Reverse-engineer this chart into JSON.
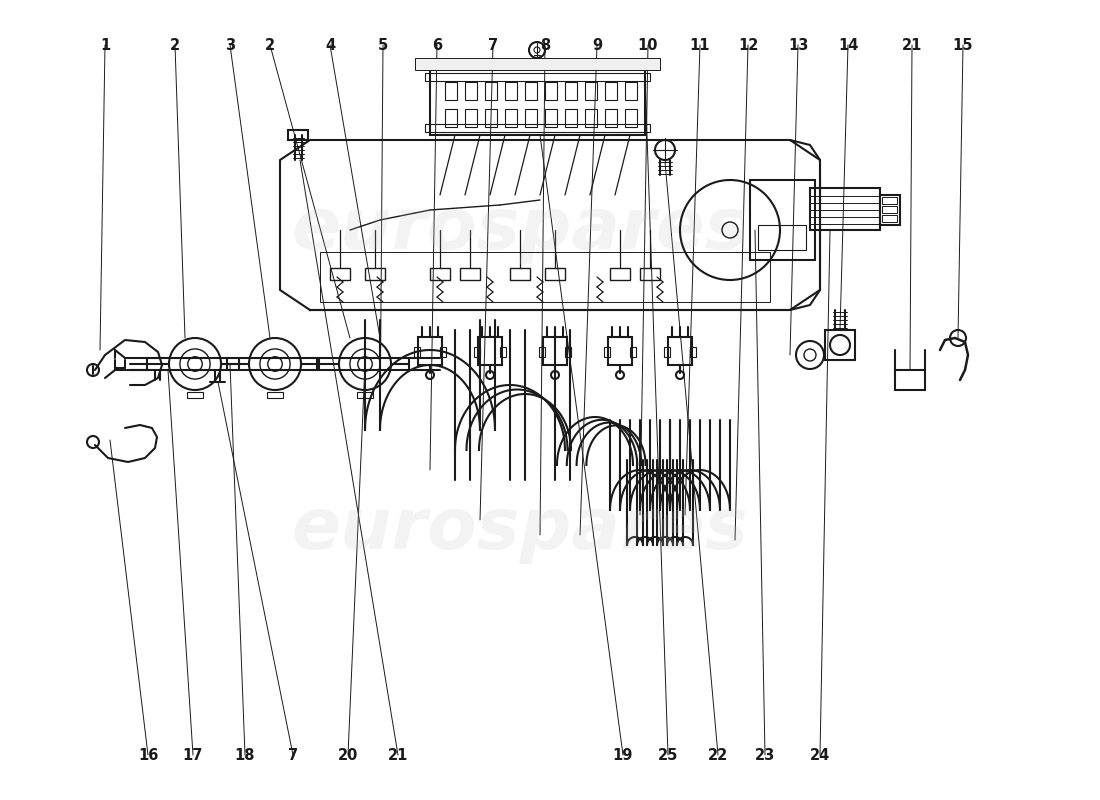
{
  "background_color": "#ffffff",
  "line_color": "#1a1a1a",
  "watermark_text": "eurospares",
  "top_labels": [
    [
      105,
      755,
      "1"
    ],
    [
      175,
      755,
      "2"
    ],
    [
      230,
      755,
      "3"
    ],
    [
      270,
      755,
      "2"
    ],
    [
      330,
      755,
      "4"
    ],
    [
      383,
      755,
      "5"
    ],
    [
      437,
      755,
      "6"
    ],
    [
      493,
      755,
      "7"
    ],
    [
      545,
      755,
      "8"
    ],
    [
      597,
      755,
      "9"
    ],
    [
      648,
      755,
      "10"
    ],
    [
      700,
      755,
      "11"
    ],
    [
      748,
      755,
      "12"
    ],
    [
      798,
      755,
      "13"
    ],
    [
      848,
      755,
      "14"
    ],
    [
      912,
      755,
      "21"
    ],
    [
      963,
      755,
      "15"
    ]
  ],
  "bottom_labels": [
    [
      148,
      45,
      "16"
    ],
    [
      193,
      45,
      "17"
    ],
    [
      245,
      45,
      "18"
    ],
    [
      293,
      45,
      "7"
    ],
    [
      348,
      45,
      "20"
    ],
    [
      398,
      45,
      "21"
    ],
    [
      623,
      45,
      "19"
    ],
    [
      668,
      45,
      "25"
    ],
    [
      718,
      45,
      "22"
    ],
    [
      765,
      45,
      "23"
    ],
    [
      820,
      45,
      "24"
    ]
  ]
}
